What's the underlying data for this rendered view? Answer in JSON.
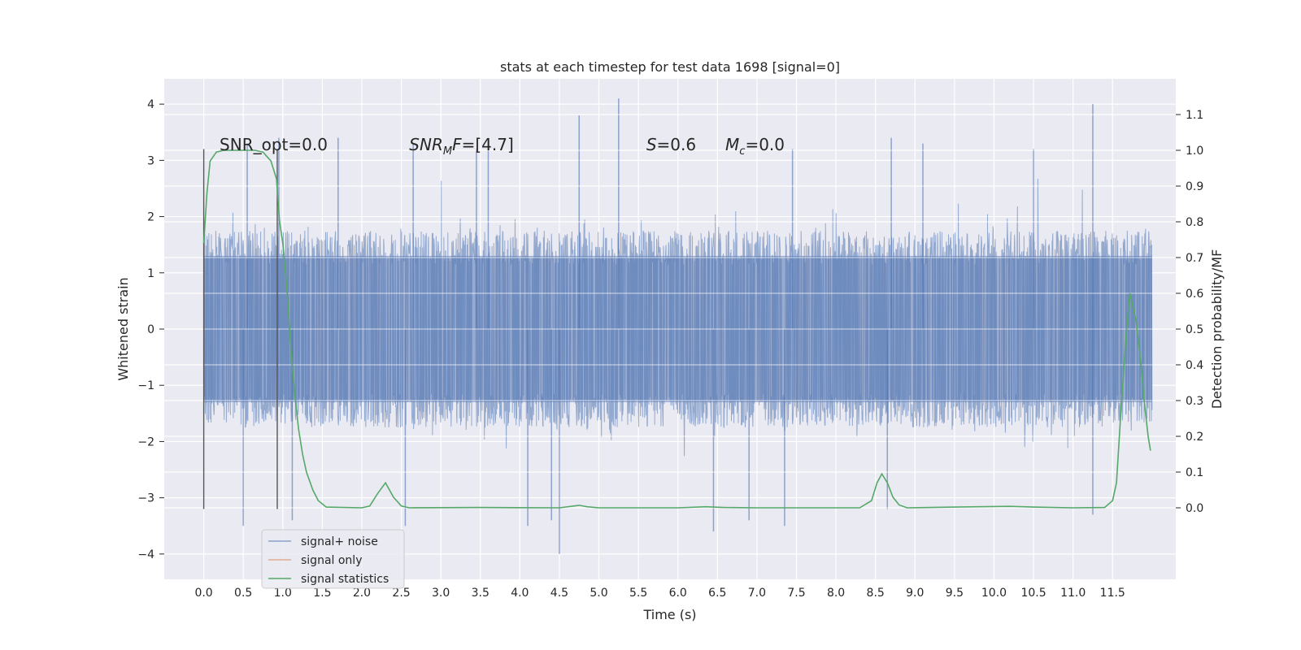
{
  "chart_data": {
    "type": "line",
    "title": "stats at each timestep for test data 1698 [signal=0]",
    "xlabel": "Time (s)",
    "ylabel": "Whitened strain",
    "ylabel_right": "Detection probability/MF",
    "xlim": [
      -0.5,
      12.3
    ],
    "ylim": [
      -4.45,
      4.45
    ],
    "ylim_right": [
      -0.2,
      1.2
    ],
    "grid": true,
    "legend_position": "lower-left",
    "x_ticks": [
      0.0,
      0.5,
      1.0,
      1.5,
      2.0,
      2.5,
      3.0,
      3.5,
      4.0,
      4.5,
      5.0,
      5.5,
      6.0,
      6.5,
      7.0,
      7.5,
      8.0,
      8.5,
      9.0,
      9.5,
      10.0,
      10.5,
      11.0,
      11.5
    ],
    "x_tick_labels": [
      "0.0",
      "0.5",
      "1.0",
      "1.5",
      "2.0",
      "2.5",
      "3.0",
      "3.5",
      "4.0",
      "4.5",
      "5.0",
      "5.5",
      "6.0",
      "6.5",
      "7.0",
      "7.5",
      "8.0",
      "8.5",
      "9.0",
      "9.5",
      "10.0",
      "10.5",
      "11.0",
      "11.5"
    ],
    "y_ticks": [
      -4,
      -3,
      -2,
      -1,
      0,
      1,
      2,
      3,
      4
    ],
    "y_tick_labels": [
      "−4",
      "−3",
      "−2",
      "−1",
      "0",
      "1",
      "2",
      "3",
      "4"
    ],
    "y_ticks_right": [
      0.0,
      0.1,
      0.2,
      0.3,
      0.4,
      0.5,
      0.6,
      0.7,
      0.8,
      0.9,
      1.0,
      1.1
    ],
    "y_tick_labels_right": [
      "0.0",
      "0.1",
      "0.2",
      "0.3",
      "0.4",
      "0.5",
      "0.6",
      "0.7",
      "0.8",
      "0.9",
      "1.0",
      "1.1"
    ],
    "annotations": {
      "snr_opt": "SNR_opt=0.0",
      "snr_mf_main": "SNR",
      "snr_mf_sub": "M",
      "snr_mf_main2": "F",
      "snr_mf_value": "=[4.7]",
      "s_label": "S",
      "s_value": "=0.6",
      "mc_main": "M",
      "mc_sub": "c",
      "mc_value": "=0.0"
    },
    "vertical_markers": [
      {
        "x": 0.0,
        "ymin": -3.2,
        "ymax": 3.2
      },
      {
        "x": 0.93,
        "ymin": -3.2,
        "ymax": 3.2
      }
    ],
    "noise": {
      "t_start": 0.0,
      "t_end": 12.0,
      "envelope": 2.0,
      "peaks": [
        {
          "x": 0.55,
          "y": 3.3
        },
        {
          "x": 0.95,
          "y": 3.4
        },
        {
          "x": 1.12,
          "y": -3.4
        },
        {
          "x": 1.7,
          "y": 3.4
        },
        {
          "x": 2.65,
          "y": 3.3
        },
        {
          "x": 3.45,
          "y": 3.2
        },
        {
          "x": 3.6,
          "y": 3.4
        },
        {
          "x": 4.1,
          "y": -3.5
        },
        {
          "x": 4.4,
          "y": -3.4
        },
        {
          "x": 4.5,
          "y": -4.0
        },
        {
          "x": 4.75,
          "y": 3.8
        },
        {
          "x": 5.25,
          "y": 4.1
        },
        {
          "x": 6.45,
          "y": -3.6
        },
        {
          "x": 6.9,
          "y": -3.4
        },
        {
          "x": 7.35,
          "y": -3.5
        },
        {
          "x": 7.45,
          "y": 3.2
        },
        {
          "x": 8.65,
          "y": -3.2
        },
        {
          "x": 8.7,
          "y": 3.4
        },
        {
          "x": 9.1,
          "y": 3.3
        },
        {
          "x": 10.5,
          "y": 3.2
        },
        {
          "x": 11.25,
          "y": 4.0
        },
        {
          "x": 11.25,
          "y": -3.3
        },
        {
          "x": 0.5,
          "y": -3.5
        },
        {
          "x": 2.55,
          "y": -3.5
        }
      ]
    },
    "series": [
      {
        "name": "signal+ noise",
        "color": "#4c72b0",
        "points": []
      },
      {
        "name": "signal only",
        "color": "#dd8452",
        "points": []
      },
      {
        "name": "signal statistics",
        "color": "#55a868",
        "points": [
          [
            0.0,
            0.74
          ],
          [
            0.04,
            0.88
          ],
          [
            0.08,
            0.97
          ],
          [
            0.16,
            0.995
          ],
          [
            0.25,
            1.0
          ],
          [
            0.5,
            1.0
          ],
          [
            0.65,
            1.0
          ],
          [
            0.75,
            0.995
          ],
          [
            0.85,
            0.97
          ],
          [
            0.92,
            0.92
          ],
          [
            0.96,
            0.8
          ],
          [
            1.0,
            0.74
          ],
          [
            1.05,
            0.62
          ],
          [
            1.1,
            0.45
          ],
          [
            1.15,
            0.32
          ],
          [
            1.2,
            0.22
          ],
          [
            1.25,
            0.15
          ],
          [
            1.3,
            0.1
          ],
          [
            1.38,
            0.05
          ],
          [
            1.45,
            0.02
          ],
          [
            1.55,
            0.002
          ],
          [
            2.0,
            0.0
          ],
          [
            2.1,
            0.005
          ],
          [
            2.2,
            0.04
          ],
          [
            2.3,
            0.07
          ],
          [
            2.4,
            0.03
          ],
          [
            2.5,
            0.005
          ],
          [
            2.6,
            0.0
          ],
          [
            3.5,
            0.001
          ],
          [
            4.5,
            0.0
          ],
          [
            4.65,
            0.004
          ],
          [
            4.75,
            0.007
          ],
          [
            4.85,
            0.003
          ],
          [
            5.0,
            0.0
          ],
          [
            6.0,
            0.0
          ],
          [
            6.35,
            0.003
          ],
          [
            6.6,
            0.001
          ],
          [
            7.0,
            0.0
          ],
          [
            8.3,
            0.0
          ],
          [
            8.45,
            0.02
          ],
          [
            8.52,
            0.07
          ],
          [
            8.58,
            0.095
          ],
          [
            8.65,
            0.07
          ],
          [
            8.72,
            0.03
          ],
          [
            8.8,
            0.008
          ],
          [
            8.9,
            0.0
          ],
          [
            9.5,
            0.002
          ],
          [
            9.8,
            0.003
          ],
          [
            10.2,
            0.004
          ],
          [
            10.5,
            0.002
          ],
          [
            11.0,
            0.0
          ],
          [
            11.4,
            0.001
          ],
          [
            11.5,
            0.02
          ],
          [
            11.55,
            0.07
          ],
          [
            11.6,
            0.25
          ],
          [
            11.67,
            0.48
          ],
          [
            11.72,
            0.6
          ],
          [
            11.8,
            0.52
          ],
          [
            11.85,
            0.42
          ],
          [
            11.9,
            0.3
          ],
          [
            11.95,
            0.2
          ],
          [
            11.98,
            0.16
          ]
        ]
      }
    ]
  }
}
